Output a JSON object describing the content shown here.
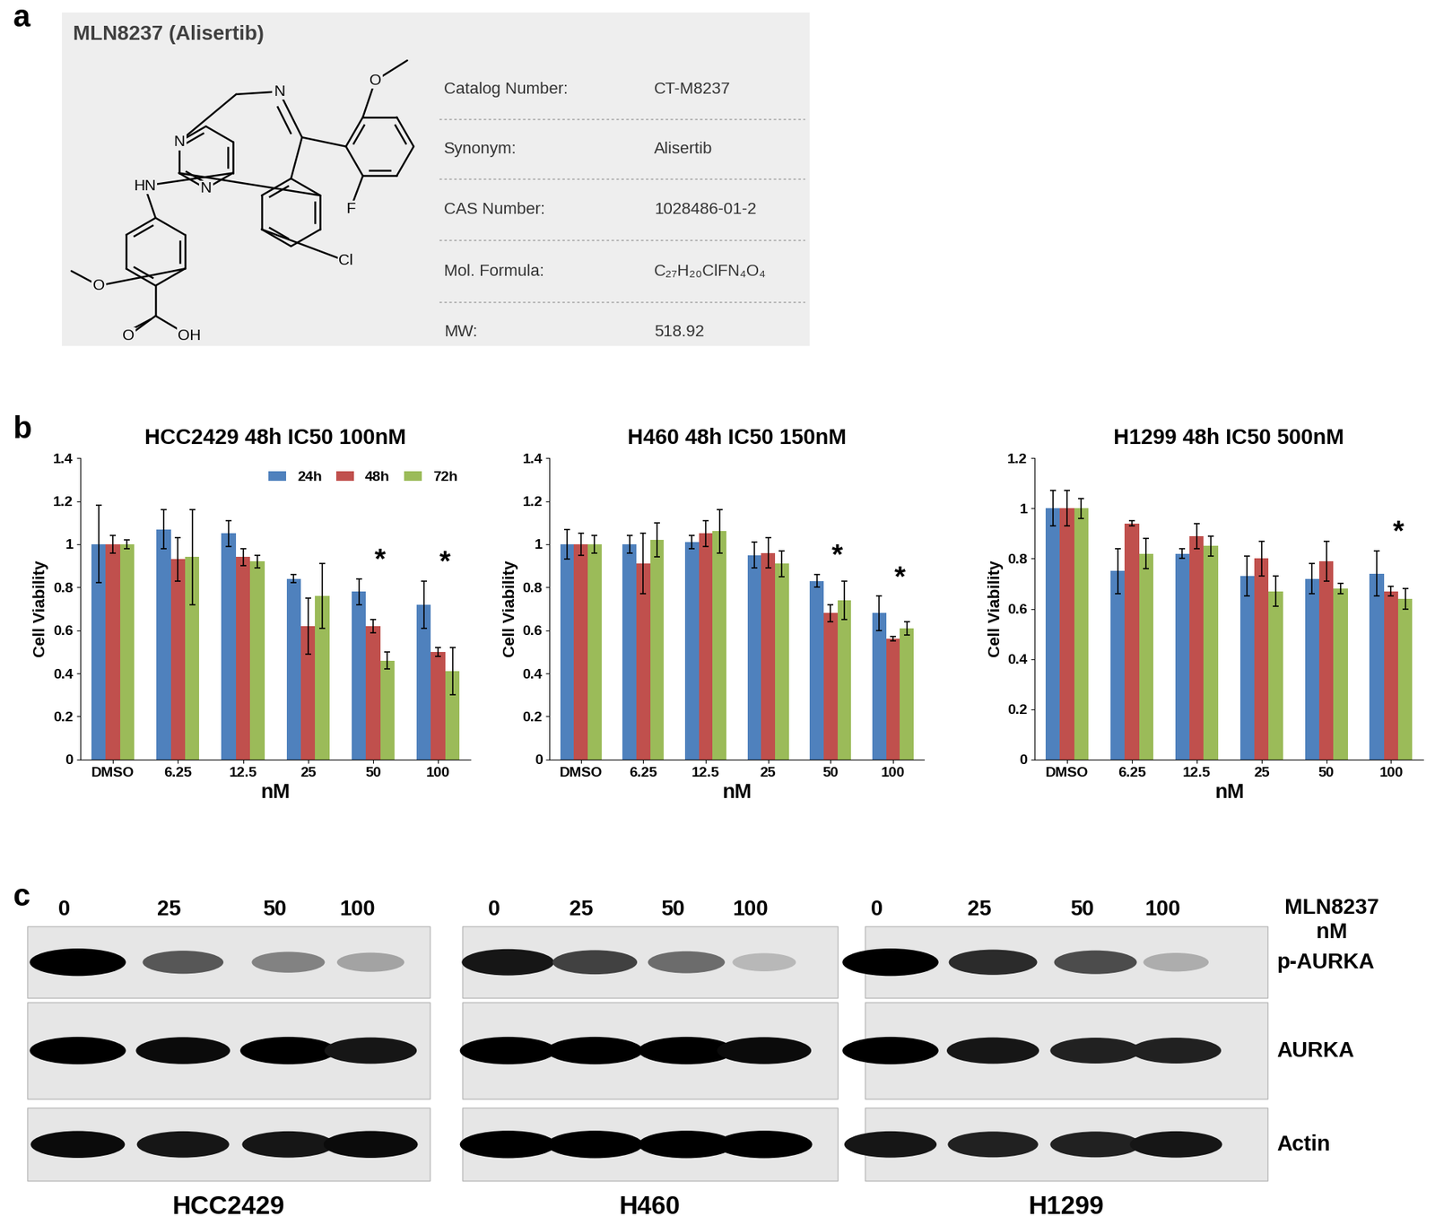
{
  "panel_labels": [
    "a",
    "b",
    "c"
  ],
  "compound_panel": {
    "title": "MLN8237 (Alisertib)",
    "atoms": [
      "N",
      "N",
      "N",
      "HN",
      "O",
      "F",
      "Cl",
      "O",
      "O",
      "OH"
    ],
    "table": [
      [
        "Catalog Number:",
        "CT-M8237"
      ],
      [
        "Synonym:",
        "Alisertib"
      ],
      [
        "CAS Number:",
        "1028486-01-2"
      ],
      [
        "Mol. Formula:",
        "C₂₇H₂₀ClFN₄O₄"
      ],
      [
        "MW:",
        "518.92"
      ]
    ]
  },
  "chart_data": [
    {
      "type": "bar",
      "title": "HCC2429 48h IC50 100nM",
      "x_label": "nM",
      "y_label": "Cell Viability",
      "categories": [
        "DMSO",
        "6.25",
        "12.5",
        "25",
        "50",
        "100"
      ],
      "series": [
        {
          "name": "24h",
          "color": "#4f81bd",
          "values": [
            1,
            1.07,
            1.05,
            0.84,
            0.78,
            0.72
          ],
          "errors": [
            0.18,
            0.09,
            0.06,
            0.02,
            0.06,
            0.11
          ]
        },
        {
          "name": "48h",
          "color": "#c0504d",
          "values": [
            1,
            0.93,
            0.94,
            0.62,
            0.62,
            0.5
          ],
          "errors": [
            0.04,
            0.1,
            0.04,
            0.13,
            0.03,
            0.02
          ]
        },
        {
          "name": "72h",
          "color": "#9bbb59",
          "values": [
            1,
            0.94,
            0.92,
            0.76,
            0.46,
            0.41
          ],
          "errors": [
            0.02,
            0.22,
            0.03,
            0.15,
            0.04,
            0.11
          ]
        }
      ],
      "ylim": [
        0,
        1.4
      ],
      "yticks": [
        0,
        0.2,
        0.4,
        0.6,
        0.8,
        1,
        1.2,
        1.4
      ],
      "legend": "upper right",
      "annotations": [
        {
          "text": "*",
          "category": "50"
        },
        {
          "text": "*",
          "category": "100"
        }
      ]
    },
    {
      "type": "bar",
      "title": "H460 48h IC50 150nM",
      "x_label": "nM",
      "y_label": "Cell Viability",
      "categories": [
        "DMSO",
        "6.25",
        "12.5",
        "25",
        "50",
        "100"
      ],
      "series": [
        {
          "color": "#4f81bd",
          "values": [
            1,
            1,
            1.01,
            0.95,
            0.83,
            0.68
          ],
          "errors": [
            0.07,
            0.04,
            0.03,
            0.06,
            0.03,
            0.08
          ]
        },
        {
          "color": "#c0504d",
          "values": [
            1,
            0.91,
            1.05,
            0.96,
            0.68,
            0.56
          ],
          "errors": [
            0.05,
            0.14,
            0.06,
            0.07,
            0.04,
            0.01
          ]
        },
        {
          "color": "#9bbb59",
          "values": [
            1,
            1.02,
            1.06,
            0.91,
            0.74,
            0.61
          ],
          "errors": [
            0.04,
            0.08,
            0.1,
            0.06,
            0.09,
            0.03
          ]
        }
      ],
      "ylim": [
        0,
        1.4
      ],
      "yticks": [
        0,
        0.2,
        0.4,
        0.6,
        0.8,
        1,
        1.2,
        1.4
      ],
      "annotations": [
        {
          "text": "*",
          "category": "50"
        },
        {
          "text": "*",
          "category": "100"
        }
      ]
    },
    {
      "type": "bar",
      "title": "H1299 48h IC50 500nM",
      "x_label": "nM",
      "y_label": "Cell Viability",
      "categories": [
        "DMSO",
        "6.25",
        "12.5",
        "25",
        "50",
        "100"
      ],
      "series": [
        {
          "color": "#4f81bd",
          "values": [
            1,
            0.75,
            0.82,
            0.73,
            0.72,
            0.74
          ],
          "errors": [
            0.07,
            0.09,
            0.02,
            0.08,
            0.06,
            0.09
          ]
        },
        {
          "color": "#c0504d",
          "values": [
            1,
            0.94,
            0.89,
            0.8,
            0.79,
            0.67
          ],
          "errors": [
            0.07,
            0.01,
            0.05,
            0.07,
            0.08,
            0.02
          ]
        },
        {
          "color": "#9bbb59",
          "values": [
            1,
            0.82,
            0.85,
            0.67,
            0.68,
            0.64
          ],
          "errors": [
            0.04,
            0.06,
            0.04,
            0.06,
            0.02,
            0.04
          ]
        }
      ],
      "ylim": [
        0,
        1.2
      ],
      "yticks": [
        0,
        0.2,
        0.4,
        0.6,
        0.8,
        1,
        1.2
      ],
      "annotations": [
        {
          "text": "*",
          "category": "100"
        }
      ]
    }
  ],
  "blot_panel": {
    "dose_title": "MLN8237\nnM",
    "doses": [
      "0",
      "25",
      "50",
      "100"
    ],
    "proteins": [
      "p-AURKA",
      "AURKA",
      "Actin"
    ],
    "blots": [
      {
        "cell_line": "HCC2429",
        "intensities": [
          [
            1.0,
            0.6,
            0.4,
            0.25
          ],
          [
            1.0,
            0.95,
            1.0,
            0.9
          ],
          [
            0.95,
            0.9,
            0.9,
            0.95
          ]
        ]
      },
      {
        "cell_line": "H460",
        "intensities": [
          [
            0.9,
            0.7,
            0.5,
            0.15
          ],
          [
            1.0,
            1.0,
            1.0,
            0.95
          ],
          [
            1.0,
            1.0,
            1.0,
            1.0
          ]
        ]
      },
      {
        "cell_line": "H1299",
        "intensities": [
          [
            1.0,
            0.8,
            0.65,
            0.2
          ],
          [
            1.0,
            0.9,
            0.85,
            0.85
          ],
          [
            0.9,
            0.85,
            0.85,
            0.9
          ]
        ]
      }
    ]
  }
}
